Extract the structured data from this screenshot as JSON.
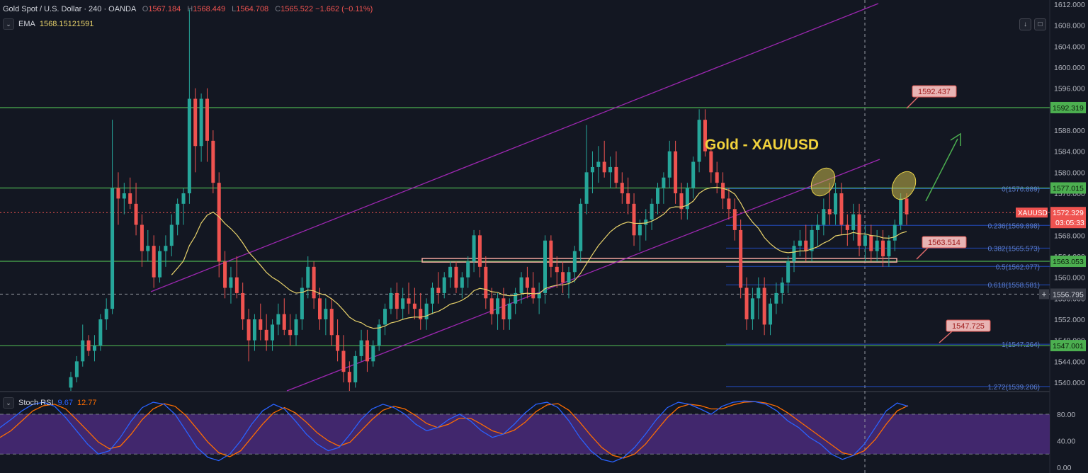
{
  "header": {
    "symbol": "Gold Spot / U.S. Dollar · 240 · OANDA",
    "o_label": "O",
    "o": "1567.184",
    "h_label": "H",
    "h": "1568.449",
    "l_label": "L",
    "l": "1564.708",
    "c_label": "C",
    "c": "1565.522",
    "change": "−1.662 (−0.11%)"
  },
  "ema": {
    "label": "EMA",
    "value": "1568.15121591"
  },
  "stoch": {
    "label": "Stoch RSI",
    "k": "9.67",
    "d": "12.77"
  },
  "annotation_title": "Gold - XAU/USD",
  "colors": {
    "bg": "#131722",
    "up": "#26a69a",
    "down": "#ef5350",
    "hline": "#4caf50",
    "channel": "#9c27b0",
    "ema": "#e9d36b",
    "fib": "#2962ff",
    "stoch_band": "#4a2a7a",
    "k": "#2962ff",
    "d": "#ff6d00"
  },
  "chart_data": {
    "type": "candlestick",
    "ylim": [
      1537,
      1612
    ],
    "y_ticks": [
      "1612.000",
      "1608.000",
      "1604.000",
      "1600.000",
      "1596.000",
      "1592.000",
      "1588.000",
      "1584.000",
      "1580.000",
      "1576.000",
      "1572.000",
      "1568.000",
      "1564.000",
      "1560.000",
      "1556.000",
      "1552.000",
      "1548.000",
      "1544.000",
      "1540.000"
    ],
    "stoch_ticks": [
      "80.00",
      "40.00",
      "0.00"
    ],
    "horizontal_levels": [
      {
        "label": "1592.319",
        "value": 1592.319
      },
      {
        "label": "1577.015",
        "value": 1577.015
      },
      {
        "label": "1563.053",
        "value": 1563.053
      },
      {
        "label": "1547.001",
        "value": 1547.001
      }
    ],
    "price_tags": [
      {
        "label": "XAUUSD",
        "value": "1572.329"
      },
      {
        "label": "",
        "value": "03:05:33"
      },
      {
        "label": "",
        "value": "1556.795"
      }
    ],
    "callouts": [
      "1592.437",
      "1563.514",
      "1547.725"
    ],
    "fib_levels": [
      {
        "label": "0(1576.889)",
        "value": 1576.889
      },
      {
        "label": "0.236(1569.898)",
        "value": 1569.898
      },
      {
        "label": "0.382(1565.573)",
        "value": 1565.573
      },
      {
        "label": "0.5(1562.077)",
        "value": 1562.077
      },
      {
        "label": "0.618(1558.581)",
        "value": 1558.581
      },
      {
        "label": "1(1547.264)",
        "value": 1547.264
      },
      {
        "label": "1.272(1539.206)",
        "value": 1539.206
      }
    ],
    "current_price": 1572.329,
    "crosshair_price": 1556.795,
    "candles": [
      [
        1539,
        1542,
        1538,
        1541
      ],
      [
        1541,
        1545,
        1540,
        1544
      ],
      [
        1544,
        1551,
        1543,
        1548
      ],
      [
        1548,
        1549,
        1545,
        1546
      ],
      [
        1546,
        1549,
        1544,
        1547
      ],
      [
        1547,
        1553,
        1546,
        1552
      ],
      [
        1552,
        1556,
        1550,
        1554
      ],
      [
        1554,
        1590,
        1553,
        1577
      ],
      [
        1577,
        1580,
        1570,
        1575
      ],
      [
        1575,
        1578,
        1572,
        1576
      ],
      [
        1576,
        1579,
        1573,
        1574
      ],
      [
        1574,
        1578,
        1568,
        1570
      ],
      [
        1570,
        1572,
        1562,
        1565
      ],
      [
        1565,
        1569,
        1563,
        1566
      ],
      [
        1566,
        1568,
        1558,
        1560
      ],
      [
        1560,
        1566,
        1559,
        1565
      ],
      [
        1565,
        1568,
        1562,
        1566
      ],
      [
        1566,
        1572,
        1564,
        1570
      ],
      [
        1570,
        1575,
        1568,
        1574
      ],
      [
        1574,
        1577,
        1570,
        1576
      ],
      [
        1576,
        1611,
        1574,
        1594
      ],
      [
        1594,
        1596,
        1580,
        1585
      ],
      [
        1585,
        1595,
        1582,
        1594
      ],
      [
        1594,
        1596,
        1582,
        1586
      ],
      [
        1586,
        1588,
        1576,
        1578
      ],
      [
        1578,
        1580,
        1560,
        1563
      ],
      [
        1563,
        1565,
        1556,
        1558
      ],
      [
        1558,
        1562,
        1555,
        1560
      ],
      [
        1560,
        1564,
        1556,
        1557
      ],
      [
        1557,
        1559,
        1550,
        1552
      ],
      [
        1552,
        1554,
        1544,
        1548
      ],
      [
        1548,
        1553,
        1546,
        1552
      ],
      [
        1552,
        1555,
        1548,
        1550
      ],
      [
        1550,
        1553,
        1546,
        1548
      ],
      [
        1548,
        1552,
        1546,
        1551
      ],
      [
        1551,
        1555,
        1549,
        1553
      ],
      [
        1553,
        1556,
        1549,
        1550
      ],
      [
        1550,
        1553,
        1547,
        1549
      ],
      [
        1549,
        1553,
        1547,
        1552
      ],
      [
        1552,
        1560,
        1550,
        1558
      ],
      [
        1558,
        1564,
        1556,
        1562
      ],
      [
        1562,
        1563,
        1554,
        1556
      ],
      [
        1556,
        1558,
        1550,
        1552
      ],
      [
        1552,
        1556,
        1549,
        1554
      ],
      [
        1554,
        1556,
        1547,
        1549
      ],
      [
        1549,
        1552,
        1544,
        1546
      ],
      [
        1546,
        1549,
        1540,
        1542
      ],
      [
        1542,
        1544,
        1538,
        1540
      ],
      [
        1540,
        1546,
        1539,
        1545
      ],
      [
        1545,
        1550,
        1544,
        1548
      ],
      [
        1548,
        1550,
        1542,
        1544
      ],
      [
        1544,
        1548,
        1543,
        1547
      ],
      [
        1547,
        1552,
        1546,
        1551
      ],
      [
        1551,
        1555,
        1549,
        1554
      ],
      [
        1554,
        1558,
        1553,
        1557
      ],
      [
        1557,
        1559,
        1552,
        1554
      ],
      [
        1554,
        1558,
        1552,
        1556
      ],
      [
        1556,
        1559,
        1553,
        1555
      ],
      [
        1555,
        1558,
        1552,
        1554
      ],
      [
        1554,
        1557,
        1550,
        1552
      ],
      [
        1552,
        1556,
        1550,
        1555
      ],
      [
        1555,
        1559,
        1553,
        1558
      ],
      [
        1558,
        1561,
        1555,
        1557
      ],
      [
        1557,
        1561,
        1556,
        1560
      ],
      [
        1560,
        1563,
        1558,
        1562
      ],
      [
        1562,
        1563,
        1557,
        1558
      ],
      [
        1558,
        1561,
        1556,
        1560
      ],
      [
        1560,
        1564,
        1558,
        1563
      ],
      [
        1563,
        1569,
        1561,
        1568
      ],
      [
        1568,
        1569,
        1560,
        1562
      ],
      [
        1562,
        1564,
        1554,
        1556
      ],
      [
        1556,
        1558,
        1551,
        1553
      ],
      [
        1553,
        1557,
        1550,
        1556
      ],
      [
        1556,
        1558,
        1550,
        1552
      ],
      [
        1552,
        1556,
        1550,
        1555
      ],
      [
        1555,
        1558,
        1553,
        1557
      ],
      [
        1557,
        1561,
        1555,
        1560
      ],
      [
        1560,
        1562,
        1556,
        1558
      ],
      [
        1558,
        1561,
        1555,
        1556
      ],
      [
        1556,
        1559,
        1553,
        1557
      ],
      [
        1557,
        1568,
        1555,
        1567
      ],
      [
        1567,
        1568,
        1560,
        1562
      ],
      [
        1562,
        1564,
        1558,
        1561
      ],
      [
        1561,
        1563,
        1557,
        1559
      ],
      [
        1559,
        1562,
        1556,
        1561
      ],
      [
        1561,
        1566,
        1559,
        1565
      ],
      [
        1565,
        1575,
        1563,
        1574
      ],
      [
        1574,
        1589,
        1572,
        1580
      ],
      [
        1580,
        1584,
        1576,
        1581
      ],
      [
        1581,
        1585,
        1578,
        1582
      ],
      [
        1582,
        1586,
        1579,
        1580
      ],
      [
        1580,
        1583,
        1577,
        1581
      ],
      [
        1581,
        1584,
        1577,
        1578
      ],
      [
        1578,
        1580,
        1574,
        1576
      ],
      [
        1576,
        1579,
        1572,
        1574
      ],
      [
        1574,
        1576,
        1566,
        1568
      ],
      [
        1568,
        1571,
        1565,
        1570
      ],
      [
        1570,
        1573,
        1567,
        1571
      ],
      [
        1571,
        1575,
        1569,
        1574
      ],
      [
        1574,
        1578,
        1572,
        1577
      ],
      [
        1577,
        1580,
        1574,
        1579
      ],
      [
        1579,
        1586,
        1577,
        1584
      ],
      [
        1584,
        1586,
        1574,
        1576
      ],
      [
        1576,
        1578,
        1571,
        1573
      ],
      [
        1573,
        1578,
        1571,
        1577
      ],
      [
        1577,
        1583,
        1575,
        1582
      ],
      [
        1582,
        1592,
        1580,
        1590
      ],
      [
        1590,
        1592,
        1583,
        1584
      ],
      [
        1584,
        1585,
        1578,
        1580
      ],
      [
        1580,
        1582,
        1576,
        1578
      ],
      [
        1578,
        1580,
        1573,
        1575
      ],
      [
        1575,
        1577,
        1571,
        1573
      ],
      [
        1573,
        1575,
        1567,
        1569
      ],
      [
        1569,
        1571,
        1556,
        1558
      ],
      [
        1558,
        1560,
        1550,
        1552
      ],
      [
        1552,
        1558,
        1550,
        1556
      ],
      [
        1556,
        1560,
        1552,
        1558
      ],
      [
        1558,
        1560,
        1549,
        1551
      ],
      [
        1551,
        1556,
        1549,
        1555
      ],
      [
        1555,
        1559,
        1553,
        1557
      ],
      [
        1557,
        1560,
        1555,
        1559
      ],
      [
        1559,
        1564,
        1557,
        1563
      ],
      [
        1563,
        1567,
        1561,
        1566
      ],
      [
        1566,
        1569,
        1564,
        1567
      ],
      [
        1567,
        1570,
        1563,
        1565
      ],
      [
        1565,
        1570,
        1563,
        1569
      ],
      [
        1569,
        1572,
        1566,
        1570
      ],
      [
        1570,
        1575,
        1568,
        1573
      ],
      [
        1573,
        1578,
        1570,
        1572
      ],
      [
        1572,
        1578,
        1570,
        1576
      ],
      [
        1576,
        1578,
        1568,
        1570
      ],
      [
        1570,
        1572,
        1566,
        1569
      ],
      [
        1569,
        1574,
        1567,
        1572
      ],
      [
        1572,
        1574,
        1564,
        1566
      ],
      [
        1566,
        1570,
        1563,
        1568
      ],
      [
        1568,
        1570,
        1563,
        1565
      ],
      [
        1565,
        1569,
        1563,
        1567
      ],
      [
        1567,
        1569,
        1562,
        1564
      ],
      [
        1564,
        1568,
        1562,
        1567
      ],
      [
        1567,
        1571,
        1565,
        1570
      ],
      [
        1570,
        1576,
        1569,
        1575
      ],
      [
        1575,
        1576,
        1570,
        1572
      ]
    ],
    "stoch_k": [
      60,
      72,
      85,
      95,
      98,
      92,
      75,
      55,
      35,
      20,
      25,
      45,
      70,
      90,
      98,
      95,
      80,
      55,
      30,
      15,
      10,
      20,
      40,
      65,
      85,
      95,
      88,
      70,
      50,
      35,
      25,
      30,
      50,
      72,
      88,
      95,
      90,
      80,
      65,
      55,
      60,
      72,
      80,
      70,
      55,
      45,
      50,
      65,
      82,
      95,
      98,
      90,
      70,
      45,
      25,
      12,
      8,
      15,
      30,
      50,
      72,
      90,
      98,
      95,
      88,
      80,
      92,
      98,
      100,
      99,
      95,
      85,
      70,
      60,
      45,
      35,
      20,
      12,
      18,
      35,
      60,
      85,
      97,
      92
    ],
    "stoch_d": [
      45,
      55,
      70,
      85,
      93,
      95,
      88,
      72,
      55,
      38,
      28,
      32,
      50,
      72,
      88,
      96,
      92,
      78,
      58,
      38,
      22,
      16,
      25,
      45,
      65,
      82,
      90,
      82,
      68,
      52,
      40,
      32,
      38,
      55,
      72,
      86,
      92,
      88,
      78,
      66,
      60,
      65,
      74,
      74,
      65,
      55,
      50,
      56,
      68,
      84,
      94,
      96,
      86,
      68,
      48,
      30,
      18,
      14,
      20,
      35,
      55,
      75,
      90,
      95,
      93,
      88,
      88,
      94,
      98,
      99,
      97,
      92,
      82,
      70,
      58,
      46,
      34,
      22,
      18,
      25,
      42,
      65,
      85,
      93
    ]
  }
}
